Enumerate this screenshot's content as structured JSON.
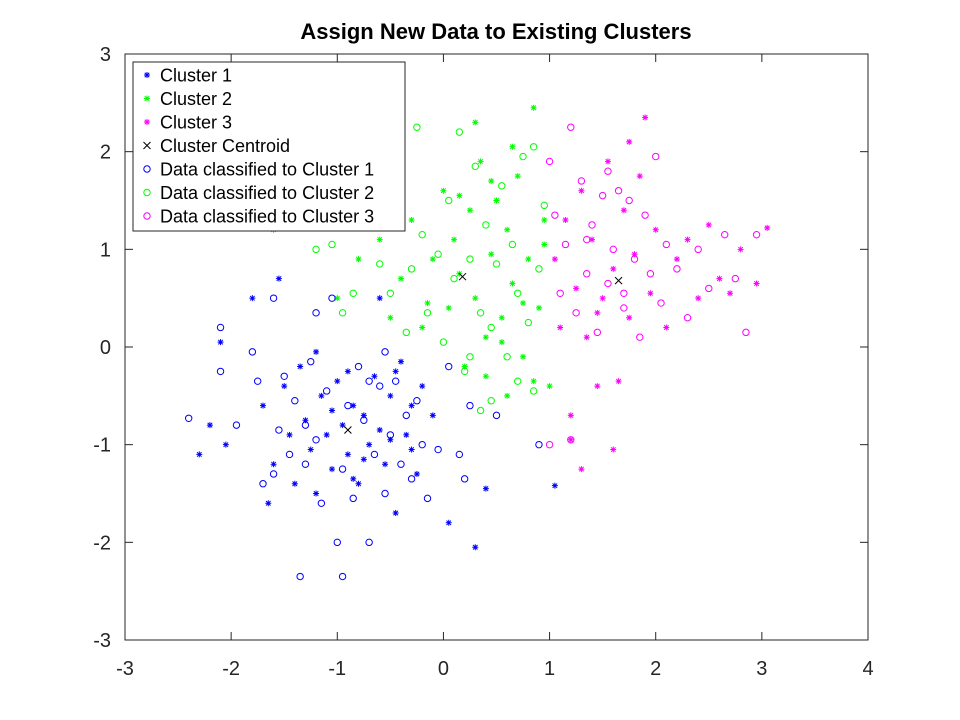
{
  "chart_data": {
    "type": "scatter",
    "title": "Assign New Data to Existing Clusters",
    "xlabel": "",
    "ylabel": "",
    "xlim": [
      -3,
      4
    ],
    "ylim": [
      -3,
      3
    ],
    "xticks": [
      "-3",
      "-2",
      "-1",
      "0",
      "1",
      "2",
      "3",
      "4"
    ],
    "yticks": [
      "-3",
      "-2",
      "-1",
      "0",
      "1",
      "2",
      "3"
    ],
    "grid": false,
    "legend_position": "top-left",
    "series": [
      {
        "name": "Cluster 1",
        "marker": "asterisk",
        "color": "#0000ff",
        "points": [
          [
            -2.3,
            -1.1
          ],
          [
            -2.2,
            -0.8
          ],
          [
            -2.1,
            0.05
          ],
          [
            -2.05,
            -1.0
          ],
          [
            -1.8,
            0.5
          ],
          [
            -1.7,
            -0.6
          ],
          [
            -1.65,
            -1.6
          ],
          [
            -1.6,
            -1.2
          ],
          [
            -1.55,
            0.7
          ],
          [
            -1.5,
            -0.4
          ],
          [
            -1.45,
            -0.9
          ],
          [
            -1.4,
            -1.4
          ],
          [
            -1.35,
            -0.2
          ],
          [
            -1.3,
            -0.75
          ],
          [
            -1.25,
            -1.05
          ],
          [
            -1.2,
            -1.5
          ],
          [
            -1.15,
            -0.5
          ],
          [
            -1.1,
            -0.9
          ],
          [
            -1.05,
            -1.25
          ],
          [
            -1.0,
            -0.35
          ],
          [
            -0.95,
            -0.8
          ],
          [
            -0.9,
            -1.1
          ],
          [
            -0.85,
            -0.6
          ],
          [
            -0.8,
            -1.4
          ],
          [
            -0.75,
            -0.7
          ],
          [
            -0.7,
            -1.0
          ],
          [
            -0.65,
            -0.3
          ],
          [
            -0.6,
            -0.85
          ],
          [
            -0.55,
            -1.2
          ],
          [
            -0.5,
            -0.5
          ],
          [
            -0.45,
            -1.7
          ],
          [
            -0.4,
            -0.15
          ],
          [
            -0.35,
            -0.9
          ],
          [
            -0.3,
            -0.6
          ],
          [
            -0.25,
            -1.3
          ],
          [
            -0.2,
            -0.4
          ],
          [
            -0.1,
            -0.7
          ],
          [
            0.05,
            -1.8
          ],
          [
            0.3,
            -2.05
          ],
          [
            0.4,
            -1.45
          ],
          [
            1.05,
            -1.42
          ],
          [
            -0.6,
            0.5
          ],
          [
            -0.9,
            -0.25
          ],
          [
            -1.2,
            -0.05
          ],
          [
            -0.75,
            -1.15
          ],
          [
            -0.5,
            -0.95
          ],
          [
            -1.05,
            -0.65
          ],
          [
            -0.85,
            -1.35
          ],
          [
            -0.45,
            -0.25
          ],
          [
            -0.3,
            -1.05
          ]
        ]
      },
      {
        "name": "Cluster 2",
        "marker": "asterisk",
        "color": "#00ff00",
        "points": [
          [
            -1.6,
            1.2
          ],
          [
            -1.0,
            0.5
          ],
          [
            -0.8,
            0.9
          ],
          [
            -0.6,
            1.1
          ],
          [
            -0.5,
            0.3
          ],
          [
            -0.4,
            0.7
          ],
          [
            -0.3,
            1.3
          ],
          [
            -0.2,
            0.2
          ],
          [
            -0.1,
            0.9
          ],
          [
            0.0,
            1.6
          ],
          [
            0.05,
            0.4
          ],
          [
            0.1,
            1.1
          ],
          [
            0.15,
            0.75
          ],
          [
            0.2,
            -0.2
          ],
          [
            0.25,
            1.4
          ],
          [
            0.3,
            0.5
          ],
          [
            0.35,
            1.9
          ],
          [
            0.4,
            0.1
          ],
          [
            0.45,
            0.95
          ],
          [
            0.5,
            1.5
          ],
          [
            0.55,
            0.3
          ],
          [
            0.6,
            1.2
          ],
          [
            0.65,
            0.65
          ],
          [
            0.7,
            1.75
          ],
          [
            0.75,
            -0.1
          ],
          [
            0.8,
            0.9
          ],
          [
            0.85,
            2.45
          ],
          [
            0.9,
            0.4
          ],
          [
            0.95,
            1.3
          ],
          [
            0.4,
            -0.3
          ],
          [
            0.6,
            -0.5
          ],
          [
            0.85,
            -0.35
          ],
          [
            0.3,
            2.3
          ],
          [
            -0.15,
            0.45
          ],
          [
            0.55,
            0.05
          ],
          [
            0.75,
            0.45
          ],
          [
            0.15,
            1.55
          ],
          [
            0.45,
            1.7
          ],
          [
            0.65,
            2.05
          ],
          [
            0.95,
            1.05
          ],
          [
            1.0,
            -0.4
          ]
        ]
      },
      {
        "name": "Cluster 3",
        "marker": "asterisk",
        "color": "#ff00ff",
        "points": [
          [
            1.05,
            0.9
          ],
          [
            1.1,
            0.2
          ],
          [
            1.15,
            1.3
          ],
          [
            1.2,
            -0.7
          ],
          [
            1.25,
            0.6
          ],
          [
            1.3,
            1.6
          ],
          [
            1.3,
            -1.25
          ],
          [
            1.35,
            0.1
          ],
          [
            1.4,
            1.1
          ],
          [
            1.45,
            -0.4
          ],
          [
            1.5,
            0.5
          ],
          [
            1.55,
            1.9
          ],
          [
            1.6,
            0.8
          ],
          [
            1.65,
            -0.35
          ],
          [
            1.7,
            1.4
          ],
          [
            1.75,
            0.3
          ],
          [
            1.8,
            0.95
          ],
          [
            1.85,
            1.75
          ],
          [
            1.9,
            2.35
          ],
          [
            1.95,
            0.55
          ],
          [
            2.0,
            1.2
          ],
          [
            2.1,
            0.2
          ],
          [
            2.2,
            0.9
          ],
          [
            2.3,
            1.1
          ],
          [
            2.4,
            0.5
          ],
          [
            2.5,
            1.25
          ],
          [
            2.6,
            0.7
          ],
          [
            2.7,
            0.55
          ],
          [
            2.8,
            1.0
          ],
          [
            2.95,
            0.65
          ],
          [
            3.05,
            1.22
          ],
          [
            1.6,
            -1.05
          ],
          [
            1.2,
            -0.95
          ],
          [
            1.45,
            0.35
          ],
          [
            1.75,
            2.1
          ]
        ]
      },
      {
        "name": "Cluster Centroid",
        "marker": "x",
        "color": "#000000",
        "points": [
          [
            -0.9,
            -0.85
          ],
          [
            0.18,
            0.72
          ],
          [
            1.65,
            0.68
          ]
        ]
      },
      {
        "name": "Data classified to Cluster 1",
        "marker": "circle",
        "color": "#0000ff",
        "points": [
          [
            -2.4,
            -0.73
          ],
          [
            -2.1,
            0.2
          ],
          [
            -2.1,
            -0.25
          ],
          [
            -1.95,
            -0.8
          ],
          [
            -1.8,
            -0.05
          ],
          [
            -1.75,
            -0.35
          ],
          [
            -1.7,
            -1.4
          ],
          [
            -1.6,
            -1.3
          ],
          [
            -1.55,
            -0.85
          ],
          [
            -1.5,
            -0.3
          ],
          [
            -1.45,
            -1.1
          ],
          [
            -1.4,
            -0.55
          ],
          [
            -1.35,
            -2.35
          ],
          [
            -1.3,
            -1.2
          ],
          [
            -1.25,
            -0.15
          ],
          [
            -1.2,
            -0.95
          ],
          [
            -1.15,
            -1.6
          ],
          [
            -1.1,
            -0.45
          ],
          [
            -1.05,
            0.5
          ],
          [
            -1.0,
            -2.0
          ],
          [
            -0.95,
            -1.25
          ],
          [
            -0.9,
            -0.6
          ],
          [
            -0.85,
            -1.55
          ],
          [
            -0.8,
            -0.2
          ],
          [
            -0.75,
            -0.75
          ],
          [
            -0.7,
            -2.0
          ],
          [
            -0.65,
            -1.1
          ],
          [
            -0.6,
            -0.4
          ],
          [
            -0.55,
            -1.5
          ],
          [
            -0.5,
            -0.9
          ],
          [
            -0.45,
            -0.35
          ],
          [
            -0.4,
            -1.2
          ],
          [
            -0.35,
            -0.7
          ],
          [
            -0.3,
            -1.35
          ],
          [
            -0.25,
            -0.55
          ],
          [
            -0.2,
            -1.0
          ],
          [
            -0.15,
            -1.55
          ],
          [
            -0.05,
            -1.05
          ],
          [
            0.05,
            -0.2
          ],
          [
            0.15,
            -1.1
          ],
          [
            0.2,
            -1.35
          ],
          [
            0.25,
            -0.6
          ],
          [
            0.5,
            -0.7
          ],
          [
            0.9,
            -1.0
          ],
          [
            -0.95,
            -2.35
          ],
          [
            -0.7,
            -0.35
          ],
          [
            -1.2,
            0.35
          ],
          [
            -0.55,
            -0.05
          ],
          [
            -1.6,
            0.5
          ],
          [
            -1.3,
            -0.8
          ]
        ]
      },
      {
        "name": "Data classified to Cluster 2",
        "marker": "circle",
        "color": "#00ff00",
        "points": [
          [
            -1.2,
            1.0
          ],
          [
            -1.05,
            1.05
          ],
          [
            -0.95,
            0.35
          ],
          [
            -0.85,
            0.55
          ],
          [
            -0.7,
            1.3
          ],
          [
            -0.6,
            0.85
          ],
          [
            -0.5,
            0.55
          ],
          [
            -0.4,
            1.4
          ],
          [
            -0.3,
            0.8
          ],
          [
            -0.25,
            2.25
          ],
          [
            -0.2,
            1.15
          ],
          [
            -0.15,
            0.35
          ],
          [
            -0.05,
            0.95
          ],
          [
            0.0,
            0.05
          ],
          [
            0.05,
            1.5
          ],
          [
            0.1,
            0.7
          ],
          [
            0.15,
            2.2
          ],
          [
            0.2,
            -0.25
          ],
          [
            0.25,
            0.9
          ],
          [
            0.3,
            1.85
          ],
          [
            0.35,
            0.35
          ],
          [
            0.4,
            1.25
          ],
          [
            0.45,
            0.2
          ],
          [
            0.5,
            0.85
          ],
          [
            0.55,
            1.65
          ],
          [
            0.6,
            -0.1
          ],
          [
            0.65,
            1.05
          ],
          [
            0.7,
            0.55
          ],
          [
            0.75,
            1.95
          ],
          [
            0.8,
            0.25
          ],
          [
            0.85,
            2.05
          ],
          [
            0.9,
            0.8
          ],
          [
            0.95,
            1.45
          ],
          [
            0.35,
            -0.65
          ],
          [
            0.45,
            -0.55
          ],
          [
            0.7,
            -0.35
          ],
          [
            0.25,
            -0.1
          ],
          [
            -0.35,
            0.15
          ],
          [
            0.85,
            -0.45
          ]
        ]
      },
      {
        "name": "Data classified to Cluster 3",
        "marker": "circle",
        "color": "#ff00ff",
        "points": [
          [
            1.0,
            1.9
          ],
          [
            1.05,
            1.35
          ],
          [
            1.1,
            0.55
          ],
          [
            1.15,
            1.05
          ],
          [
            1.2,
            2.25
          ],
          [
            1.25,
            0.35
          ],
          [
            1.3,
            1.7
          ],
          [
            1.35,
            0.75
          ],
          [
            1.4,
            1.25
          ],
          [
            1.45,
            0.15
          ],
          [
            1.5,
            1.55
          ],
          [
            1.55,
            0.65
          ],
          [
            1.6,
            1.0
          ],
          [
            1.65,
            1.6
          ],
          [
            1.7,
            0.4
          ],
          [
            1.75,
            1.5
          ],
          [
            1.8,
            0.9
          ],
          [
            1.85,
            0.1
          ],
          [
            1.9,
            1.35
          ],
          [
            1.95,
            0.75
          ],
          [
            2.0,
            1.95
          ],
          [
            2.05,
            0.45
          ],
          [
            2.1,
            1.05
          ],
          [
            2.2,
            0.8
          ],
          [
            2.3,
            0.3
          ],
          [
            2.4,
            1.0
          ],
          [
            2.5,
            0.6
          ],
          [
            2.65,
            1.15
          ],
          [
            2.75,
            0.7
          ],
          [
            2.85,
            0.15
          ],
          [
            2.95,
            1.15
          ],
          [
            1.0,
            -1.0
          ],
          [
            1.2,
            -0.95
          ],
          [
            1.35,
            1.1
          ],
          [
            1.55,
            1.8
          ],
          [
            1.7,
            0.55
          ]
        ]
      }
    ]
  }
}
